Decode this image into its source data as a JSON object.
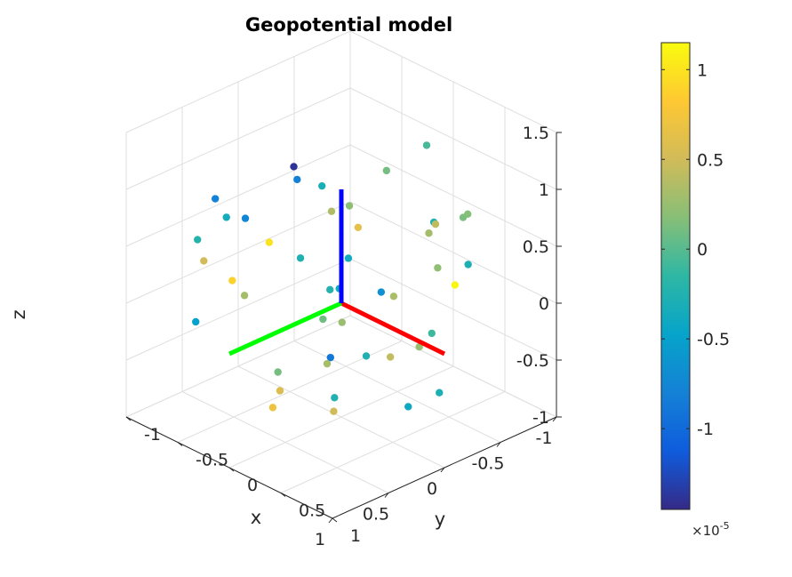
{
  "figure": {
    "title": "Geopotential model"
  },
  "chart_data": {
    "type": "scatter",
    "title": "Geopotential model",
    "xlabel": "x",
    "ylabel": "y",
    "zlabel": "z",
    "xlim": [
      -1,
      1
    ],
    "ylim": [
      -1,
      1
    ],
    "zlim": [
      -1,
      1.5
    ],
    "xticks": [
      "-1",
      "-0.5",
      "0",
      "0.5",
      "1"
    ],
    "yticks": [
      "-1",
      "-0.5",
      "0",
      "0.5",
      "1"
    ],
    "zticks": [
      "-1",
      "-0.5",
      "0",
      "0.5",
      "1",
      "1.5"
    ],
    "grid": true,
    "view": "3d",
    "colormap": "parula",
    "colorbar": {
      "location": "right",
      "exponent_label": "×10",
      "exponent_power": "-5",
      "range": [
        -1.45,
        1.15
      ],
      "ticks": [
        {
          "value": 1,
          "label": "1"
        },
        {
          "value": 0.5,
          "label": "0.5"
        },
        {
          "value": 0,
          "label": "0"
        },
        {
          "value": -0.5,
          "label": "-0.5"
        },
        {
          "value": -1,
          "label": "-1"
        }
      ]
    },
    "frame_axes": [
      {
        "name": "x-axis",
        "color": "#ff0000",
        "from": [
          0,
          0,
          0
        ],
        "to": [
          1,
          0,
          0
        ]
      },
      {
        "name": "y-axis",
        "color": "#00ff00",
        "from": [
          0,
          0,
          0
        ],
        "to": [
          0,
          1,
          0
        ]
      },
      {
        "name": "z-axis",
        "color": "#0000ff",
        "from": [
          0,
          0,
          0
        ],
        "to": [
          0,
          0,
          1
        ]
      }
    ],
    "points": [
      {
        "x": -0.96,
        "y": -0.24,
        "z": 0.0,
        "c": 1.0
      },
      {
        "x": -0.83,
        "y": 0.52,
        "z": 0.42,
        "c": -0.23
      },
      {
        "x": -0.15,
        "y": -0.9,
        "z": 0.92,
        "c": -0.06
      },
      {
        "x": 0.9,
        "y": -0.3,
        "z": 1.05,
        "c": 0.17
      },
      {
        "x": 0.65,
        "y": 0.7,
        "z": 0.72,
        "c": -0.23
      },
      {
        "x": -0.38,
        "y": 0.95,
        "z": 0.09,
        "c": -0.49
      },
      {
        "x": -0.91,
        "y": 0.39,
        "z": 0.14,
        "c": 0.51
      },
      {
        "x": 0.41,
        "y": -0.71,
        "z": 0.62,
        "c": 0.13
      },
      {
        "x": -0.65,
        "y": -0.58,
        "z": -0.42,
        "c": -0.38
      },
      {
        "x": -0.09,
        "y": 0.09,
        "z": 1.03,
        "c": -0.31
      },
      {
        "x": -0.92,
        "y": 0.01,
        "z": 0.34,
        "c": -0.75
      },
      {
        "x": 0.66,
        "y": -0.2,
        "z": -0.06,
        "c": -0.1
      },
      {
        "x": 0.3,
        "y": -0.55,
        "z": 0.6,
        "c": -0.26
      },
      {
        "x": 0.88,
        "y": -0.05,
        "z": 0.68,
        "c": 0.21
      },
      {
        "x": 0.1,
        "y": 0.64,
        "z": -0.44,
        "c": 0.58
      },
      {
        "x": -0.68,
        "y": 0.4,
        "z": 0.63,
        "c": -0.36
      },
      {
        "x": 0.62,
        "y": -0.27,
        "z": 0.85,
        "c": 0.42
      },
      {
        "x": 0.23,
        "y": 0.14,
        "z": 1.02,
        "c": 0.19
      },
      {
        "x": -0.17,
        "y": -0.56,
        "z": 0.84,
        "c": 0.11
      },
      {
        "x": 0.19,
        "y": -0.84,
        "z": -0.13,
        "c": 1.12
      },
      {
        "x": 0.79,
        "y": 0.13,
        "z": -0.5,
        "c": -0.4
      },
      {
        "x": -0.56,
        "y": 0.61,
        "z": 0.94,
        "c": -0.79
      },
      {
        "x": 0.44,
        "y": -0.47,
        "z": -0.8,
        "c": -0.29
      },
      {
        "x": -0.7,
        "y": -0.22,
        "z": 0.79,
        "c": -1.39
      },
      {
        "x": -0.79,
        "y": -0.64,
        "z": 0.17,
        "c": 0.36
      },
      {
        "x": -0.3,
        "y": 0.29,
        "z": -0.61,
        "c": 0.11
      },
      {
        "x": -0.33,
        "y": 0.67,
        "z": 0.35,
        "c": 0.88
      },
      {
        "x": -0.02,
        "y": -0.8,
        "z": 0.25,
        "c": 0.3
      },
      {
        "x": 0.6,
        "y": 0.33,
        "z": -0.05,
        "c": -0.25
      },
      {
        "x": 0.59,
        "y": 0.64,
        "z": 0.07,
        "c": -0.89
      },
      {
        "x": 0.68,
        "y": 0.27,
        "z": 0.52,
        "c": -0.66
      },
      {
        "x": -0.47,
        "y": -0.9,
        "z": -0.55,
        "c": 0.33
      },
      {
        "x": -0.95,
        "y": -0.48,
        "z": 0.45,
        "c": -0.8
      },
      {
        "x": -0.1,
        "y": 0.52,
        "z": -0.73,
        "c": 0.7
      },
      {
        "x": 0.73,
        "y": -0.46,
        "z": 0.46,
        "c": -0.28
      },
      {
        "x": 0.94,
        "y": 0.17,
        "z": 0.11,
        "c": 0.25
      },
      {
        "x": 0.48,
        "y": 0.51,
        "z": -0.51,
        "c": 0.49
      },
      {
        "x": 0.43,
        "y": 0.56,
        "z": 0.3,
        "c": 0.09
      },
      {
        "x": 0.72,
        "y": 0.79,
        "z": 0.14,
        "c": 0.32
      },
      {
        "x": -0.16,
        "y": -0.21,
        "z": 0.23,
        "c": -0.38
      },
      {
        "x": 0.39,
        "y": 0.42,
        "z": -0.47,
        "c": -0.25
      },
      {
        "x": 0.06,
        "y": 0.42,
        "z": 0.61,
        "c": -0.27
      },
      {
        "x": 0.13,
        "y": -0.03,
        "z": 0.71,
        "c": 0.64
      },
      {
        "x": -0.95,
        "y": -0.01,
        "z": -0.36,
        "c": 0.3
      },
      {
        "x": -0.08,
        "y": -0.08,
        "z": -0.24,
        "c": 0.26
      },
      {
        "x": 0.91,
        "y": 0.4,
        "z": 0.11,
        "c": 0.43
      }
    ]
  }
}
